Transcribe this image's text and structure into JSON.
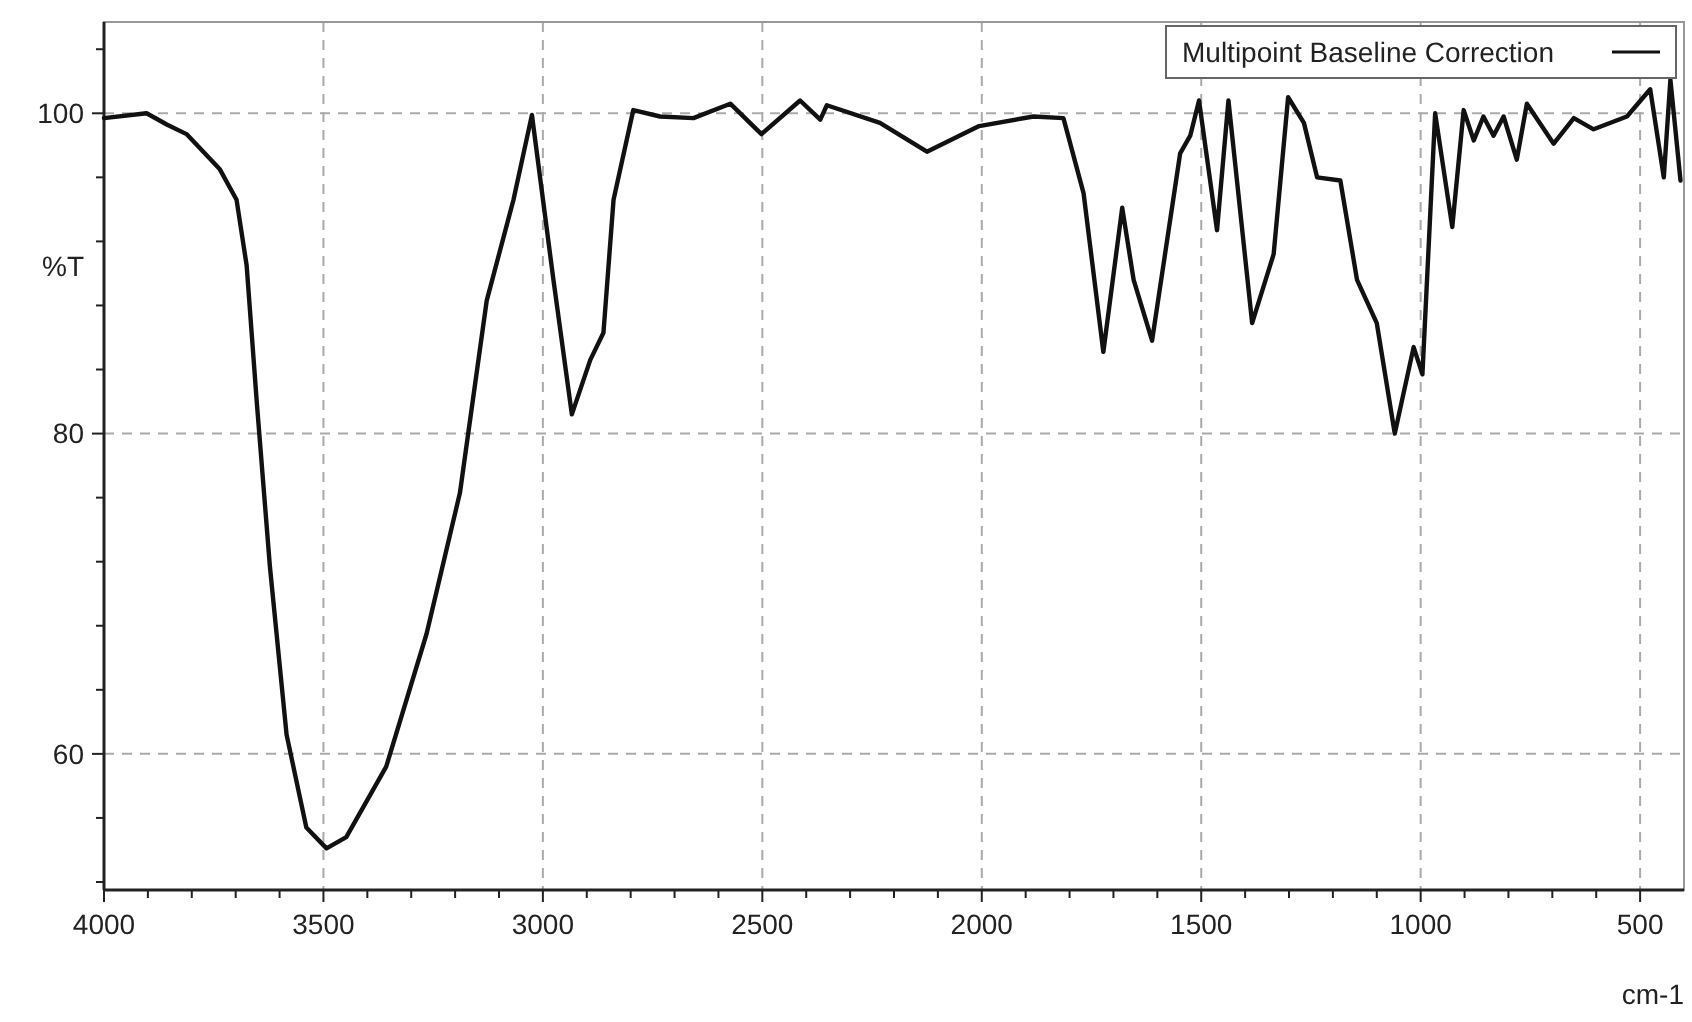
{
  "chart_data": {
    "type": "line",
    "xlabel": "cm-1",
    "ylabel": "%T",
    "xlim": [
      4000,
      400
    ],
    "ylim": [
      51.5,
      105.7
    ],
    "xticks": [
      4000,
      {
        "value": 3900,
        "label": null
      },
      {
        "value": 3800,
        "label": null
      },
      {
        "value": 3700,
        "label": null
      },
      {
        "value": 3600,
        "label": null
      },
      3500,
      {
        "value": 3400,
        "label": null
      },
      {
        "value": 3300,
        "label": null
      },
      {
        "value": 3200,
        "label": null
      },
      {
        "value": 3100,
        "label": null
      },
      3000,
      {
        "value": 2900,
        "label": null
      },
      {
        "value": 2800,
        "label": null
      },
      {
        "value": 2700,
        "label": null
      },
      {
        "value": 2600,
        "label": null
      },
      2500,
      {
        "value": 2400,
        "label": null
      },
      {
        "value": 2300,
        "label": null
      },
      {
        "value": 2200,
        "label": null
      },
      {
        "value": 2100,
        "label": null
      },
      2000,
      {
        "value": 1900,
        "label": null
      },
      {
        "value": 1800,
        "label": null
      },
      {
        "value": 1700,
        "label": null
      },
      {
        "value": 1600,
        "label": null
      },
      1500,
      {
        "value": 1400,
        "label": null
      },
      {
        "value": 1300,
        "label": null
      },
      {
        "value": 1200,
        "label": null
      },
      {
        "value": 1100,
        "label": null
      },
      1000,
      {
        "value": 900,
        "label": null
      },
      {
        "value": 800,
        "label": null
      },
      {
        "value": 700,
        "label": null
      },
      {
        "value": 600,
        "label": null
      },
      500
    ],
    "yticks": [
      {
        "value": 52,
        "label": null
      },
      {
        "value": 56,
        "label": null
      },
      60,
      {
        "value": 64,
        "label": null
      },
      {
        "value": 68,
        "label": null
      },
      {
        "value": 72,
        "label": null
      },
      {
        "value": 76,
        "label": null
      },
      80,
      {
        "value": 84,
        "label": null
      },
      {
        "value": 88,
        "label": null
      },
      {
        "value": 92,
        "label": null
      },
      {
        "value": 96,
        "label": null
      },
      100,
      {
        "value": 104,
        "label": null
      }
    ],
    "grid": true,
    "legend": "top right",
    "marker": "none",
    "line_style": "solid",
    "series": [
      {
        "name": "Multipoint Baseline Correction",
        "color": "#111111",
        "x": [
          4000,
          3903,
          3857,
          3812,
          3736,
          3698,
          3675,
          3652,
          3622,
          3584,
          3539,
          3493,
          3448,
          3357,
          3265,
          3189,
          3128,
          3067,
          3025,
          2976,
          2934,
          2892,
          2862,
          2839,
          2794,
          2733,
          2657,
          2573,
          2502,
          2414,
          2368,
          2353,
          2232,
          2125,
          2006,
          1882,
          1814,
          1768,
          1723,
          1680,
          1654,
          1612,
          1548,
          1525,
          1505,
          1464,
          1438,
          1384,
          1335,
          1302,
          1266,
          1236,
          1183,
          1145,
          1100,
          1059,
          1016,
          996,
          967,
          928,
          902,
          879,
          857,
          834,
          811,
          781,
          758,
          697,
          651,
          606,
          530,
          477,
          446,
          431,
          408
        ],
        "values": [
          99.7,
          100,
          99.3,
          98.7,
          96.5,
          94.6,
          90.5,
          82,
          71.7,
          61.2,
          55.4,
          54.1,
          54.8,
          59.2,
          67.5,
          76.3,
          88.3,
          94.6,
          99.9,
          89.6,
          81.2,
          84.6,
          86.3,
          94.6,
          100.2,
          99.8,
          99.7,
          100.6,
          98.7,
          100.8,
          99.6,
          100.5,
          99.4,
          97.6,
          99.2,
          99.8,
          99.7,
          95,
          85.1,
          94.1,
          89.6,
          85.8,
          97.5,
          98.6,
          100.8,
          92.7,
          100.8,
          86.9,
          91.2,
          101,
          99.4,
          96,
          95.8,
          89.6,
          86.9,
          80,
          85.4,
          83.7,
          100,
          92.9,
          100.2,
          98.3,
          99.8,
          98.6,
          99.8,
          97.1,
          100.6,
          98.1,
          99.7,
          99,
          99.8,
          101.5,
          96,
          102.1,
          95.8
        ]
      }
    ]
  }
}
